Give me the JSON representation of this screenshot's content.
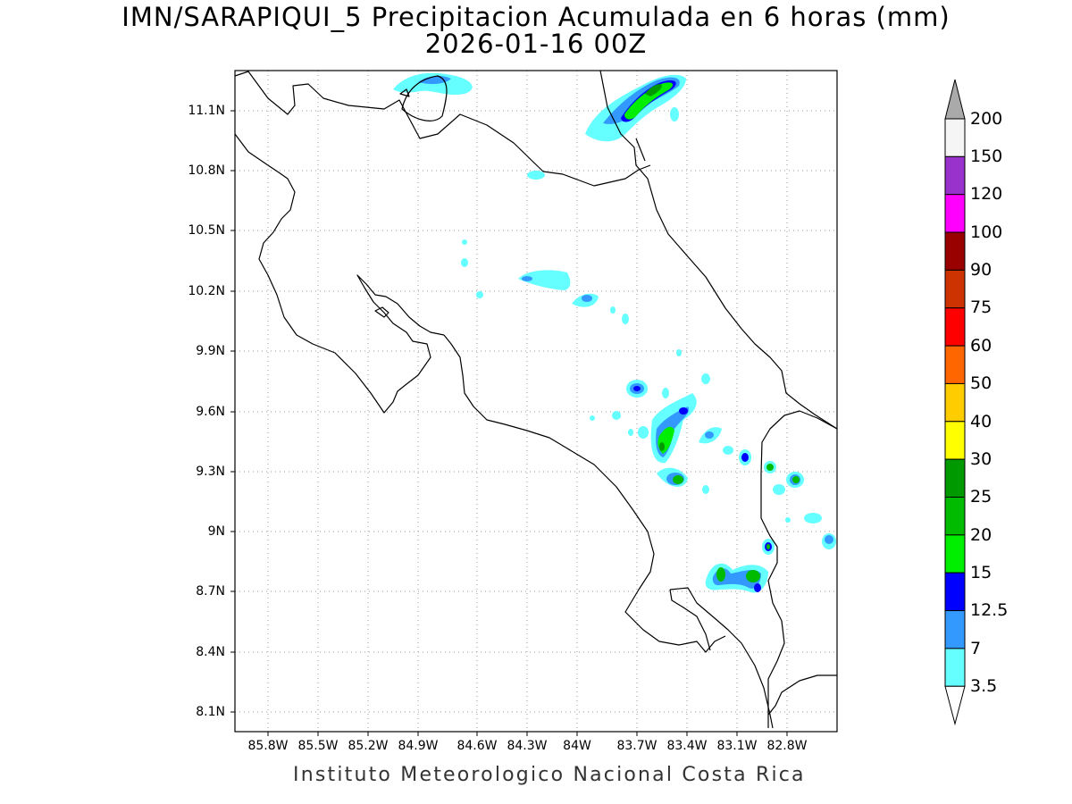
{
  "title": {
    "line1": "IMN/SARAPIQUI_5 Precipitacion Acumulada en 6 horas (mm)",
    "line2": "2026-01-16 00Z"
  },
  "axes": {
    "lat_labels": [
      "11.1N",
      "10.8N",
      "10.5N",
      "10.2N",
      "9.9N",
      "9.6N",
      "9.3N",
      "9N",
      "8.7N",
      "8.4N",
      "8.1N"
    ],
    "lon_labels": [
      "85.8W",
      "85.5W",
      "85.2W",
      "84.9W",
      "84.6W",
      "84.3W",
      "84W",
      "83.7W",
      "83.4W",
      "83.1W",
      "82.8W"
    ]
  },
  "colorbar": {
    "labels": [
      "200",
      "150",
      "120",
      "100",
      "90",
      "75",
      "60",
      "50",
      "40",
      "30",
      "25",
      "20",
      "15",
      "12.5",
      "7",
      "3.5"
    ],
    "colors": [
      "#f5f5f5",
      "#9932cc",
      "#ff00ff",
      "#990000",
      "#cc3300",
      "#ff0000",
      "#ff6600",
      "#ffcc00",
      "#ffff00",
      "#009900",
      "#00bb00",
      "#00ee00",
      "#0000ff",
      "#3399ff",
      "#66ffff"
    ],
    "over_color": "#aaaaaa",
    "under_color": "#ffffff"
  },
  "footer": "Instituto Meteorologico Nacional Costa Rica"
}
